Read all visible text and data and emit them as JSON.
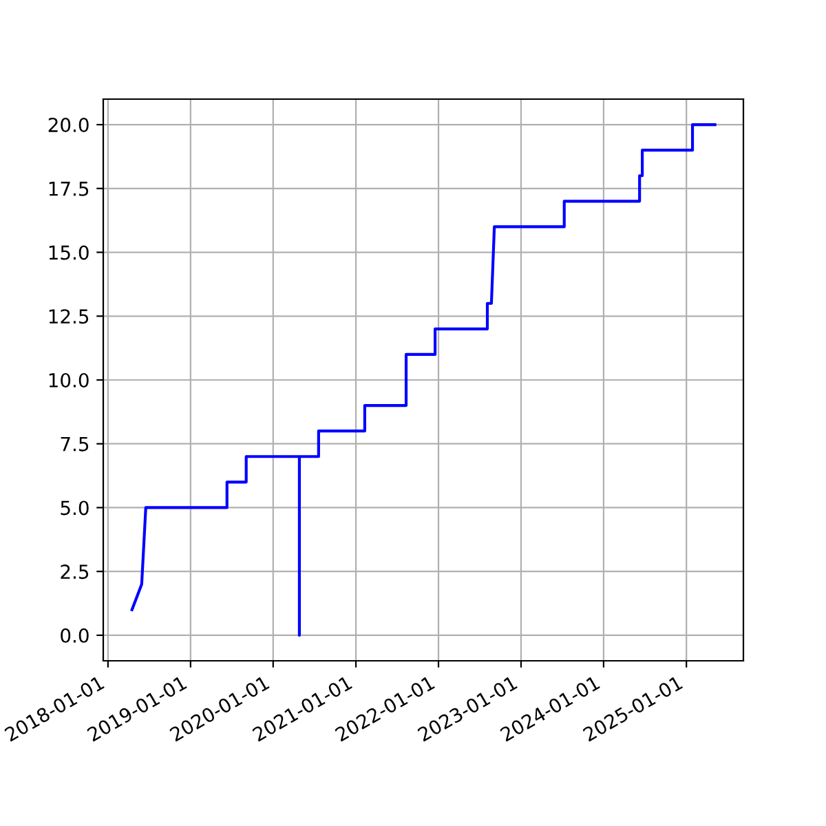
{
  "chart_data": {
    "type": "line",
    "grid": true,
    "marker": "none",
    "line_style": "solid",
    "x": [
      "2018-04-17",
      "2018-05-30",
      "2018-06-17",
      "2019-06-11",
      "2019-06-11",
      "2019-09-04",
      "2019-09-04",
      "2020-04-26",
      "2020-04-26",
      "2020-04-26",
      "2020-07-20",
      "2020-07-20",
      "2021-02-09",
      "2021-02-09",
      "2021-08-11",
      "2021-08-11",
      "2021-12-17",
      "2021-12-17",
      "2022-08-05",
      "2022-08-05",
      "2022-08-23",
      "2022-09-05",
      "2023-07-11",
      "2023-07-11",
      "2024-06-08",
      "2024-06-08",
      "2024-06-20",
      "2024-06-20",
      "2025-01-28",
      "2025-01-28",
      "2025-05-07"
    ],
    "series": [
      {
        "color": "#0000ff",
        "values": [
          1,
          2,
          5,
          5,
          6,
          6,
          7,
          7,
          0,
          7,
          7,
          8,
          8,
          9,
          9,
          11,
          11,
          12,
          12,
          13,
          13,
          16,
          16,
          17,
          17,
          18,
          18,
          19,
          19,
          20,
          20
        ]
      }
    ],
    "xlim": [
      "2017-12-11",
      "2025-09-10"
    ],
    "xticks": [
      "2018-01-01",
      "2019-01-01",
      "2020-01-01",
      "2021-01-01",
      "2022-01-01",
      "2023-01-01",
      "2024-01-01",
      "2025-01-01"
    ],
    "ylim": [
      -1,
      21
    ],
    "yticks": [
      {
        "value": 0,
        "label": "0.0"
      },
      {
        "value": 2.5,
        "label": "2.5"
      },
      {
        "value": 5,
        "label": "5.0"
      },
      {
        "value": 7.5,
        "label": "7.5"
      },
      {
        "value": 10,
        "label": "10.0"
      },
      {
        "value": 12.5,
        "label": "12.5"
      },
      {
        "value": 15,
        "label": "15.0"
      },
      {
        "value": 17.5,
        "label": "17.5"
      },
      {
        "value": 20,
        "label": "20.0"
      }
    ]
  }
}
